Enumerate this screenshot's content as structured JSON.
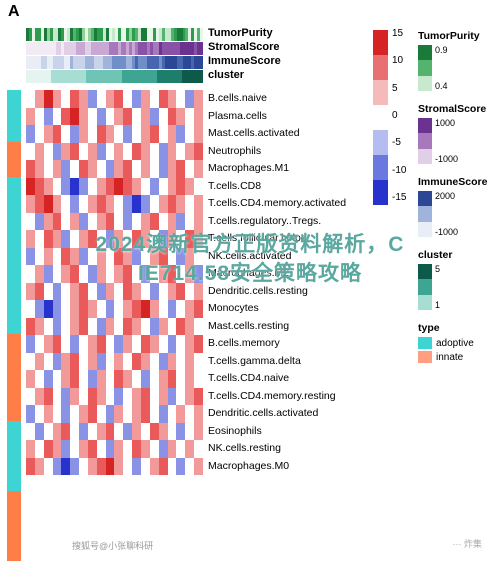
{
  "panel_label": "A",
  "overlay_line1": "2024澳新官方正版资料解析，C",
  "overlay_line2": "IE714.58安全策略攻略",
  "overlay_color": "#5aa8a0",
  "footer_left": "搜狐号@小张聊科研",
  "footer_right": "··· 炸集",
  "anno_labels": [
    "TumorPurity",
    "StromalScore",
    "ImmuneScore",
    "cluster"
  ],
  "anno_tracks": {
    "TumorPurity": {
      "n": 60,
      "colors": [
        "#1a7a3a",
        "#2d9c4f",
        "#54b36c",
        "#8fd299",
        "#c9e9ce",
        "#e8f6ea"
      ]
    },
    "StromalScore": {
      "n": 60,
      "colors": [
        "#f2ebf4",
        "#e0cfe6",
        "#c9a8d4",
        "#a878bd",
        "#8a52a6",
        "#6c3290"
      ]
    },
    "ImmuneScore": {
      "n": 60,
      "colors": [
        "#e9edf6",
        "#c9d4ea",
        "#9fb3db",
        "#708ec8",
        "#4866b0",
        "#2b4796"
      ]
    },
    "cluster": {
      "n": 60,
      "segments": [
        {
          "color": "#e6f4f1",
          "frac": 0.14
        },
        {
          "color": "#a8ddd3",
          "frac": 0.2
        },
        {
          "color": "#6fc4b5",
          "frac": 0.2
        },
        {
          "color": "#3fa593",
          "frac": 0.2
        },
        {
          "color": "#1f7d6b",
          "frac": 0.14
        },
        {
          "color": "#0d5a4a",
          "frac": 0.12
        }
      ]
    }
  },
  "left_bar_colors": [
    "#3fd4d4",
    "#ff7d47",
    "#3fd4d4",
    "#ff7d47",
    "#3fd4d4",
    "#ff7d47"
  ],
  "left_bar_heights": [
    52,
    35,
    157,
    87,
    70,
    70
  ],
  "row_labels": [
    "B.cells.naive",
    "Plasma.cells",
    "Mast.cells.activated",
    "Neutrophils",
    "Macrophages.M1",
    "T.cells.CD8",
    "T.cells.CD4.memory.activated",
    "T.cells.regulatory..Tregs.",
    "T.cells.follicular.helper",
    "NK.cells.activated",
    "Macrophages.M2",
    "Dendritic.cells.resting",
    "Monocytes",
    "Mast.cells.resting",
    "B.cells.memory",
    "T.cells.gamma.delta",
    "T.cells.CD4.naive",
    "T.cells.CD4.memory.resting",
    "Dendritic.cells.activated",
    "Eosinophils",
    "NK.cells.resting",
    "Macrophages.M0"
  ],
  "n_cols": 20,
  "heatmap_palette": {
    "low": "#2733cc",
    "mid_low": "#8a92e6",
    "zero": "#ffffff",
    "mid_high": "#f29a9a",
    "high": "#d62424"
  },
  "heatmap_rows": [
    [
      0,
      1,
      3,
      1,
      0,
      2,
      1,
      -1,
      0,
      1,
      2,
      0,
      -1,
      1,
      0,
      2,
      1,
      0,
      -1,
      1
    ],
    [
      1,
      0,
      -1,
      0,
      2,
      3,
      1,
      0,
      -1,
      0,
      1,
      2,
      0,
      1,
      -1,
      0,
      2,
      1,
      0,
      1
    ],
    [
      -1,
      0,
      1,
      2,
      0,
      -1,
      1,
      0,
      2,
      1,
      0,
      -1,
      0,
      1,
      2,
      0,
      1,
      -1,
      0,
      1
    ],
    [
      0,
      1,
      0,
      -1,
      1,
      2,
      0,
      1,
      -1,
      0,
      1,
      0,
      2,
      1,
      0,
      -1,
      1,
      0,
      1,
      2
    ],
    [
      2,
      1,
      0,
      1,
      -1,
      0,
      2,
      1,
      0,
      -1,
      1,
      2,
      0,
      1,
      0,
      -1,
      1,
      2,
      0,
      1
    ],
    [
      3,
      2,
      1,
      0,
      -1,
      -2,
      -1,
      0,
      1,
      2,
      3,
      2,
      1,
      0,
      -1,
      0,
      1,
      2,
      1,
      0
    ],
    [
      1,
      2,
      3,
      1,
      0,
      -1,
      0,
      1,
      2,
      1,
      0,
      -1,
      -2,
      -1,
      0,
      1,
      2,
      1,
      0,
      1
    ],
    [
      0,
      -1,
      1,
      2,
      0,
      1,
      -1,
      0,
      1,
      2,
      0,
      -1,
      0,
      1,
      2,
      0,
      1,
      -1,
      0,
      1
    ],
    [
      1,
      0,
      2,
      1,
      -1,
      0,
      1,
      2,
      0,
      -1,
      1,
      0,
      2,
      1,
      0,
      -1,
      1,
      0,
      2,
      1
    ],
    [
      -1,
      0,
      1,
      0,
      2,
      1,
      -1,
      0,
      1,
      0,
      2,
      1,
      -1,
      0,
      1,
      2,
      0,
      -1,
      1,
      0
    ],
    [
      0,
      1,
      -1,
      0,
      1,
      2,
      0,
      -1,
      1,
      0,
      1,
      2,
      0,
      -1,
      0,
      1,
      2,
      0,
      1,
      -1
    ],
    [
      1,
      2,
      0,
      -1,
      0,
      1,
      2,
      0,
      -1,
      1,
      0,
      2,
      1,
      0,
      -1,
      0,
      1,
      2,
      0,
      1
    ],
    [
      0,
      -1,
      -2,
      -1,
      0,
      1,
      2,
      1,
      0,
      -1,
      0,
      1,
      2,
      3,
      1,
      0,
      -1,
      0,
      1,
      2
    ],
    [
      2,
      1,
      0,
      -1,
      0,
      1,
      2,
      0,
      -1,
      1,
      0,
      2,
      1,
      0,
      -1,
      1,
      0,
      2,
      1,
      0
    ],
    [
      -1,
      0,
      1,
      2,
      0,
      -1,
      0,
      1,
      2,
      0,
      -1,
      1,
      0,
      2,
      1,
      0,
      -1,
      0,
      1,
      2
    ],
    [
      0,
      1,
      0,
      -1,
      1,
      2,
      0,
      1,
      -1,
      0,
      1,
      0,
      2,
      1,
      0,
      -1,
      1,
      0,
      1,
      0
    ],
    [
      1,
      0,
      -1,
      0,
      1,
      2,
      0,
      -1,
      1,
      0,
      2,
      1,
      0,
      -1,
      0,
      1,
      2,
      0,
      1,
      0
    ],
    [
      0,
      1,
      2,
      0,
      -1,
      1,
      0,
      2,
      1,
      0,
      -1,
      0,
      1,
      2,
      0,
      1,
      -1,
      0,
      1,
      2
    ],
    [
      -1,
      0,
      1,
      0,
      -1,
      0,
      1,
      2,
      0,
      -1,
      1,
      0,
      1,
      2,
      0,
      -1,
      0,
      1,
      0,
      1
    ],
    [
      0,
      -1,
      0,
      1,
      2,
      0,
      -1,
      0,
      1,
      2,
      0,
      -1,
      1,
      0,
      2,
      1,
      0,
      -1,
      0,
      1
    ],
    [
      1,
      0,
      2,
      1,
      -1,
      0,
      1,
      2,
      0,
      -1,
      1,
      0,
      2,
      1,
      0,
      -1,
      1,
      0,
      1,
      0
    ],
    [
      2,
      1,
      0,
      -1,
      -2,
      -1,
      0,
      1,
      2,
      3,
      1,
      0,
      -1,
      0,
      1,
      2,
      0,
      -1,
      0,
      1
    ]
  ],
  "main_colorbar": {
    "ticks": [
      "15",
      "10",
      "5",
      "0",
      "-5",
      "-10",
      "-15"
    ],
    "stops": [
      "#d62424",
      "#e87070",
      "#f5baba",
      "#ffffff",
      "#b5bdf0",
      "#6a78e0",
      "#2733cc"
    ]
  },
  "legends": {
    "TumorPurity": {
      "type": "gradient",
      "stops": [
        "#1a7a3a",
        "#54b36c",
        "#c9e9ce"
      ],
      "ticks": [
        "0.9",
        "",
        "0.4"
      ]
    },
    "StromalScore": {
      "type": "gradient",
      "stops": [
        "#6c3290",
        "#a878bd",
        "#e0cfe6"
      ],
      "ticks": [
        "1000",
        "",
        "-1000"
      ]
    },
    "ImmuneScore": {
      "type": "gradient",
      "stops": [
        "#2b4796",
        "#9fb3db",
        "#e9edf6"
      ],
      "ticks": [
        "2000",
        "",
        "-1000"
      ]
    },
    "cluster": {
      "type": "gradient",
      "stops": [
        "#0d5a4a",
        "#3fa593",
        "#a8ddd3"
      ],
      "ticks": [
        "5",
        "",
        "1"
      ]
    },
    "type": {
      "type": "swatch",
      "items": [
        {
          "color": "#3fd4d4",
          "label": "adoptive"
        },
        {
          "color": "#ff9e80",
          "label": "innate"
        }
      ]
    }
  }
}
